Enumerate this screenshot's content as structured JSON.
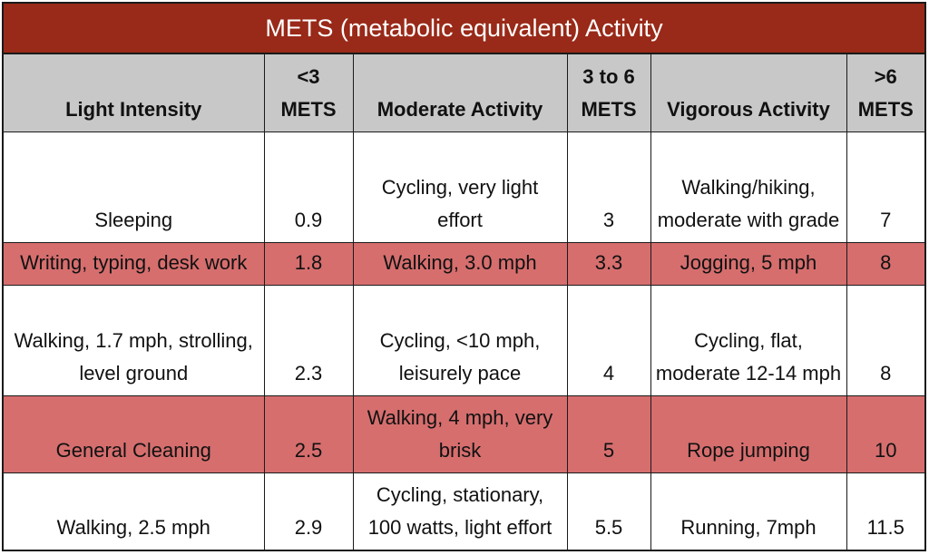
{
  "title": "METS (metabolic equivalent) Activity",
  "headers": [
    "Light Intensity",
    "<3 METS",
    "Moderate Activity",
    "3 to 6 METS",
    "Vigorous Activity",
    ">6 METS"
  ],
  "colors": {
    "title_bg": "#992918",
    "header_bg": "#c8c8c8",
    "highlight_row": "#d66e6e"
  },
  "rows": [
    {
      "light": "Sleeping",
      "light_mets": "0.9",
      "moderate": "Cycling, very light effort",
      "moderate_mets": "3",
      "vigorous": "Walking/hiking, moderate with grade",
      "vigorous_mets": "7"
    },
    {
      "light": "Writing, typing, desk work",
      "light_mets": "1.8",
      "moderate": "Walking, 3.0 mph",
      "moderate_mets": "3.3",
      "vigorous": "Jogging, 5 mph",
      "vigorous_mets": "8"
    },
    {
      "light": "Walking, 1.7 mph, strolling, level ground",
      "light_mets": "2.3",
      "moderate": "Cycling, <10 mph, leisurely pace",
      "moderate_mets": "4",
      "vigorous": "Cycling, flat, moderate 12-14 mph",
      "vigorous_mets": "8"
    },
    {
      "light": "General Cleaning",
      "light_mets": "2.5",
      "moderate": "Walking, 4 mph, very brisk",
      "moderate_mets": "5",
      "vigorous": "Rope jumping",
      "vigorous_mets": "10"
    },
    {
      "light": "Walking, 2.5 mph",
      "light_mets": "2.9",
      "moderate": "Cycling, stationary, 100 watts, light effort",
      "moderate_mets": "5.5",
      "vigorous": "Running, 7mph",
      "vigorous_mets": "11.5"
    }
  ]
}
